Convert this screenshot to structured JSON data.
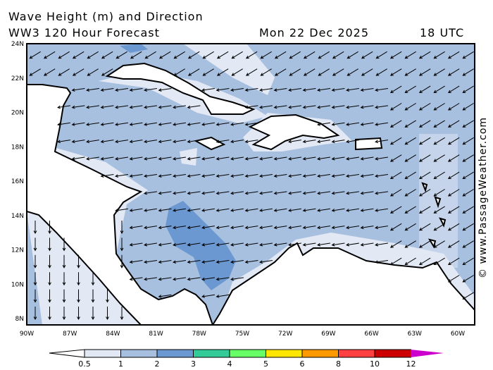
{
  "header": {
    "title": "Wave Height (m) and Direction",
    "subtitle": "WW3 120 Hour Forecast",
    "date": "Mon 22 Dec 2025",
    "time": "18 UTC"
  },
  "credit": "© www.PassageWeather.com",
  "lat_ticks": [
    "24N",
    "22N",
    "20N",
    "18N",
    "16N",
    "14N",
    "12N",
    "10N",
    "8N"
  ],
  "lon_ticks": [
    "90W",
    "87W",
    "84W",
    "81W",
    "78W",
    "75W",
    "72W",
    "69W",
    "66W",
    "63W",
    "60W"
  ],
  "legend": {
    "labels": [
      "0.5",
      "1",
      "2",
      "3",
      "4",
      "5",
      "6",
      "8",
      "10",
      "12"
    ],
    "colors": [
      "#e2e8f4",
      "#a8c0e0",
      "#6b98d0",
      "#33cc99",
      "#66ff66",
      "#ffe600",
      "#ff9900",
      "#ff4040",
      "#cc0000",
      "#cc00cc"
    ]
  },
  "colors": {
    "sea_low": "#e2e8f4",
    "sea_mid": "#a8c0e0",
    "sea_high": "#6b98d0",
    "land": "#ffffff"
  }
}
